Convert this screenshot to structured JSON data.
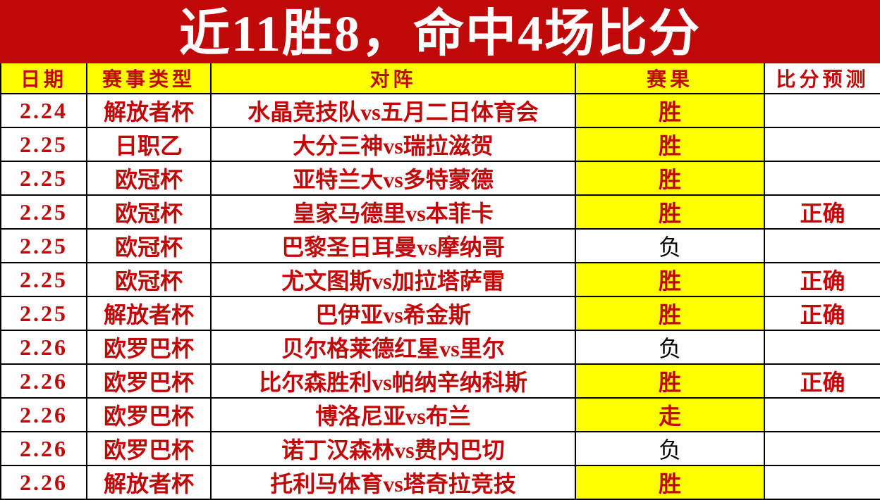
{
  "banner": {
    "title": "近11胜8，命中4场比分",
    "bg_color": "#c00808",
    "text_color": "#ffffff"
  },
  "table": {
    "header_bg": "#ffff00",
    "accent_text_color": "#c00808",
    "highlight_bg": "#ffff00",
    "loss_text_color": "#000000",
    "columns": [
      {
        "key": "date",
        "label": "日期"
      },
      {
        "key": "event_type",
        "label": "赛事类型"
      },
      {
        "key": "matchup",
        "label": "对阵"
      },
      {
        "key": "result",
        "label": "赛果"
      },
      {
        "key": "score_prediction",
        "label": "比分预测"
      }
    ],
    "rows": [
      {
        "date": "2.24",
        "event_type": "解放者杯",
        "matchup": "水晶竞技队vs五月二日体育会",
        "result": "胜",
        "result_highlight": true,
        "score_prediction": ""
      },
      {
        "date": "2.25",
        "event_type": "日职乙",
        "matchup": "大分三神vs瑞拉滋贺",
        "result": "胜",
        "result_highlight": true,
        "score_prediction": ""
      },
      {
        "date": "2.25",
        "event_type": "欧冠杯",
        "matchup": "亚特兰大vs多特蒙德",
        "result": "胜",
        "result_highlight": true,
        "score_prediction": ""
      },
      {
        "date": "2.25",
        "event_type": "欧冠杯",
        "matchup": "皇家马德里vs本菲卡",
        "result": "胜",
        "result_highlight": true,
        "score_prediction": "正确"
      },
      {
        "date": "2.25",
        "event_type": "欧冠杯",
        "matchup": "巴黎圣日耳曼vs摩纳哥",
        "result": "负",
        "result_highlight": false,
        "score_prediction": ""
      },
      {
        "date": "2.25",
        "event_type": "欧冠杯",
        "matchup": "尤文图斯vs加拉塔萨雷",
        "result": "胜",
        "result_highlight": true,
        "score_prediction": "正确"
      },
      {
        "date": "2.25",
        "event_type": "解放者杯",
        "matchup": "巴伊亚vs希金斯",
        "result": "胜",
        "result_highlight": true,
        "score_prediction": "正确"
      },
      {
        "date": "2.26",
        "event_type": "欧罗巴杯",
        "matchup": "贝尔格莱德红星vs里尔",
        "result": "负",
        "result_highlight": false,
        "score_prediction": ""
      },
      {
        "date": "2.26",
        "event_type": "欧罗巴杯",
        "matchup": "比尔森胜利vs帕纳辛纳科斯",
        "result": "胜",
        "result_highlight": true,
        "score_prediction": "正确"
      },
      {
        "date": "2.26",
        "event_type": "欧罗巴杯",
        "matchup": "博洛尼亚vs布兰",
        "result": "走",
        "result_highlight": true,
        "score_prediction": ""
      },
      {
        "date": "2.26",
        "event_type": "欧罗巴杯",
        "matchup": "诺丁汉森林vs费内巴切",
        "result": "负",
        "result_highlight": false,
        "score_prediction": ""
      },
      {
        "date": "2.26",
        "event_type": "解放者杯",
        "matchup": "托利马体育vs塔奇拉竞技",
        "result": "胜",
        "result_highlight": true,
        "score_prediction": ""
      }
    ]
  }
}
